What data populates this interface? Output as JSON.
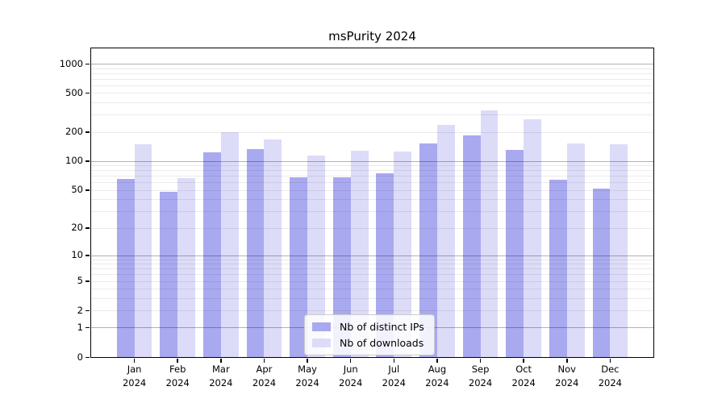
{
  "title": "msPurity 2024",
  "chart_data": {
    "type": "bar",
    "title": "msPurity 2024",
    "categories": [
      "Jan 2024",
      "Feb 2024",
      "Mar 2024",
      "Apr 2024",
      "May 2024",
      "Jun 2024",
      "Jul 2024",
      "Aug 2024",
      "Sep 2024",
      "Oct 2024",
      "Nov 2024",
      "Dec 2024"
    ],
    "series": [
      {
        "name": "Nb of distinct IPs",
        "color": "#a9a9f0",
        "values": [
          65,
          48,
          123,
          134,
          68,
          68,
          75,
          152,
          183,
          130,
          64,
          52
        ]
      },
      {
        "name": "Nb of downloads",
        "color": "#dcdcf8",
        "values": [
          150,
          66,
          200,
          167,
          115,
          128,
          126,
          237,
          333,
          268,
          152,
          148
        ]
      }
    ],
    "xlabel": "",
    "ylabel": "",
    "yscale": "log1p",
    "ylim": [
      0,
      1435
    ],
    "yticks": [
      0,
      1,
      2,
      5,
      10,
      20,
      50,
      100,
      200,
      500,
      1000
    ],
    "grid": "on",
    "legend_position": "lower center"
  },
  "colors": {
    "bar_distinct_ips": "#a9a9f0",
    "bar_downloads": "#dcdcf8",
    "grid_major": "#0000004d",
    "grid_minor": "#00000014",
    "axis_frame": "#000000",
    "legend_border": "#cccccc"
  }
}
